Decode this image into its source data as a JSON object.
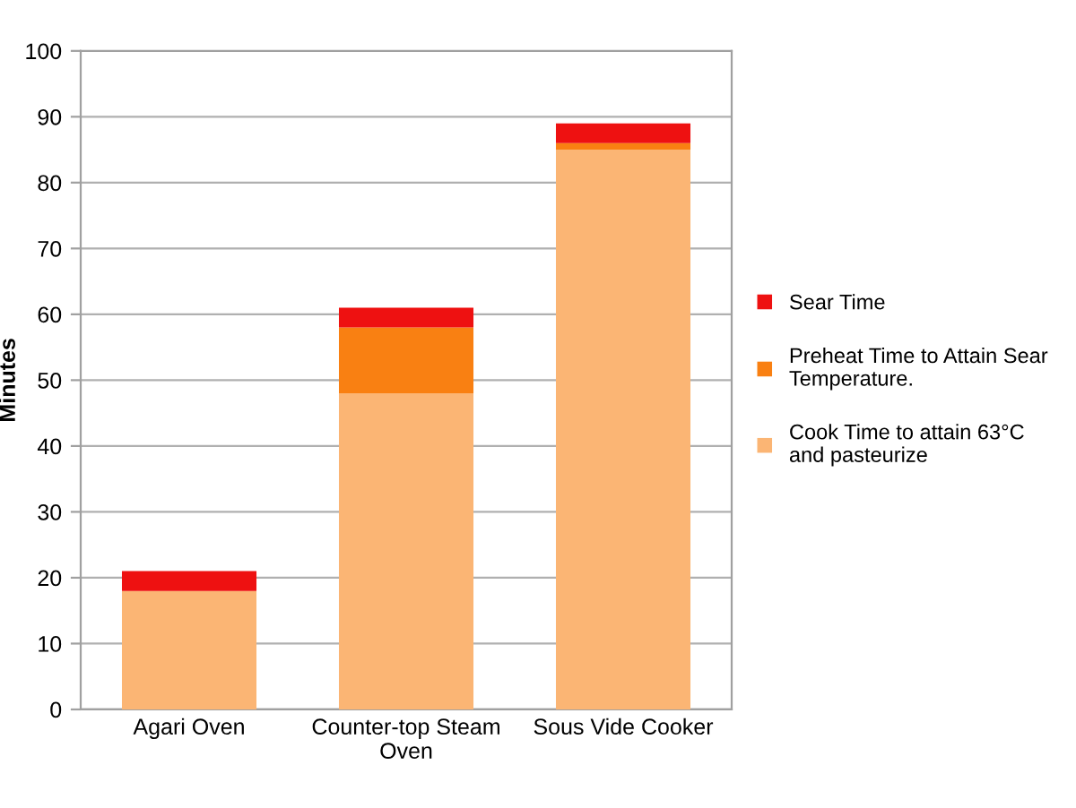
{
  "chart_data": {
    "type": "bar",
    "stacked": true,
    "ylabel": "Minutes",
    "categories": [
      "Agari Oven",
      "Counter-top Steam Oven",
      "Sous Vide Cooker"
    ],
    "series": [
      {
        "name": "Cook Time to attain 63°C and pasteurize",
        "color": "#fbb574",
        "values": [
          18,
          48,
          85
        ]
      },
      {
        "name": "Preheat Time to Attain Sear Temperature.",
        "color": "#f98012",
        "values": [
          0,
          10,
          1
        ]
      },
      {
        "name": "Sear Time",
        "color": "#ee1111",
        "values": [
          3,
          3,
          3
        ]
      }
    ],
    "ylim": [
      0,
      100
    ],
    "yticks": [
      0,
      10,
      20,
      30,
      40,
      50,
      60,
      70,
      80,
      90,
      100
    ],
    "grid": "y",
    "legend": "right"
  }
}
